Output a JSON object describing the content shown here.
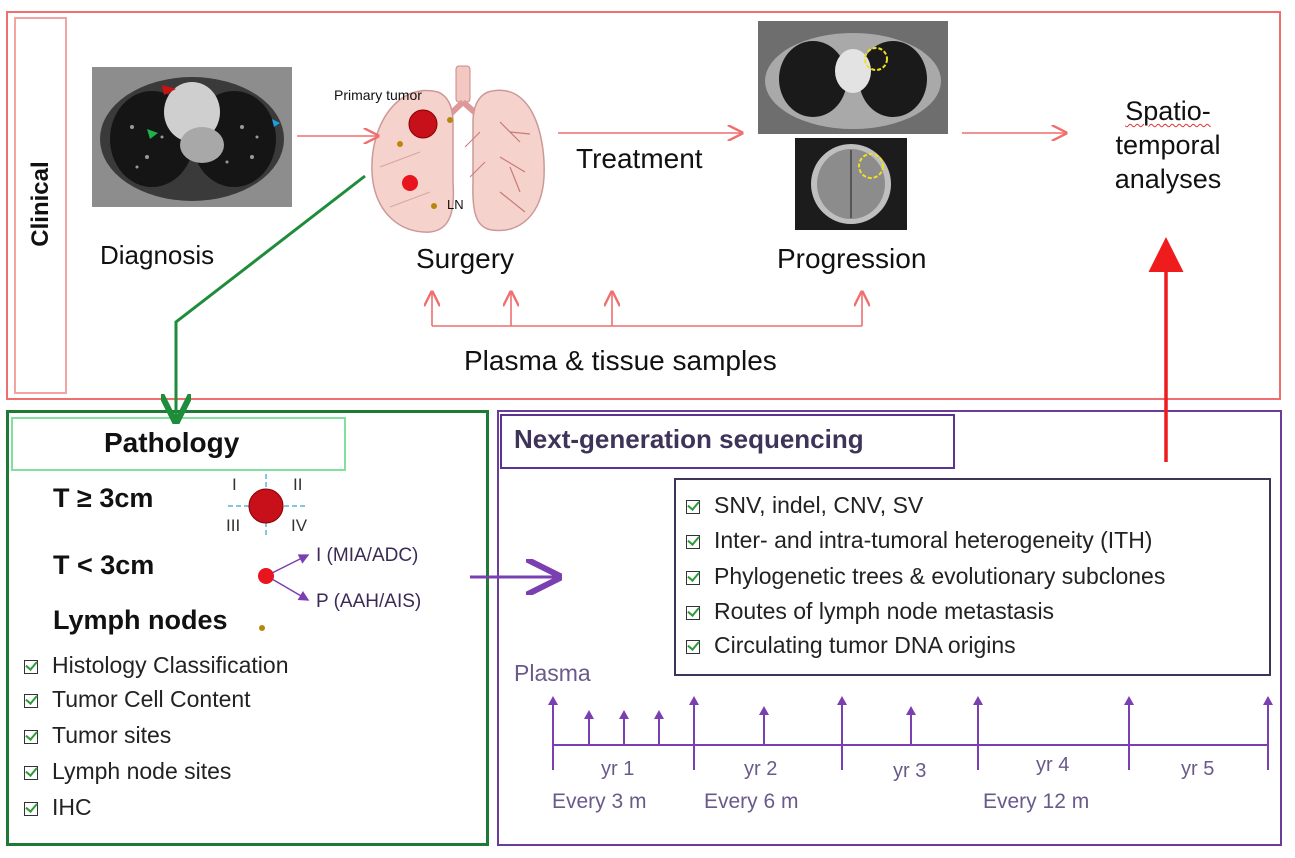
{
  "clinical": {
    "side_label": "Clinical",
    "diagnosis": "Diagnosis",
    "surgery": "Surgery",
    "primary_tumor": "Primary tumor",
    "ln": "LN",
    "treatment": "Treatment",
    "progression": "Progression",
    "spatio_line1": "Spatio-",
    "spatio_line2": "temporal",
    "spatio_line3": "analyses",
    "samples": "Plasma & tissue samples"
  },
  "pathology": {
    "title": "Pathology",
    "t_large": "T ≥ 3cm",
    "t_small": "T < 3cm",
    "lymph": "Lymph nodes",
    "quadrants": [
      "I",
      "II",
      "III",
      "IV"
    ],
    "branch_i": "I  (MIA/ADC)",
    "branch_p": "P (AAH/AIS)",
    "checks": [
      "Histology Classification",
      "Tumor Cell Content",
      "Tumor sites",
      "Lymph node sites",
      "IHC"
    ]
  },
  "ngs": {
    "title": "Next-generation sequencing",
    "checks": [
      "SNV, indel, CNV, SV",
      "Inter- and intra-tumoral heterogeneity (ITH)",
      "Phylogenetic trees & evolutionary subclones",
      "Routes of lymph node metastasis",
      "Circulating tumor DNA origins"
    ],
    "plasma": "Plasma",
    "years": [
      "yr 1",
      "yr 2",
      "yr 3",
      "yr 4",
      "yr 5"
    ],
    "every_3": "Every 3 m",
    "every_6": "Every 6 m",
    "every_12": "Every 12 m"
  },
  "colors": {
    "clinical_border": "#ef6f6f",
    "pathology_border": "#1e7a34",
    "ngs_border": "#6a3d9a",
    "arrow_red": "#ee1c1c",
    "arrow_green": "#1e8c3a",
    "arrow_purple": "#7a3fb0",
    "tumor": "#c8101a",
    "ln_dot": "#b8860b"
  }
}
